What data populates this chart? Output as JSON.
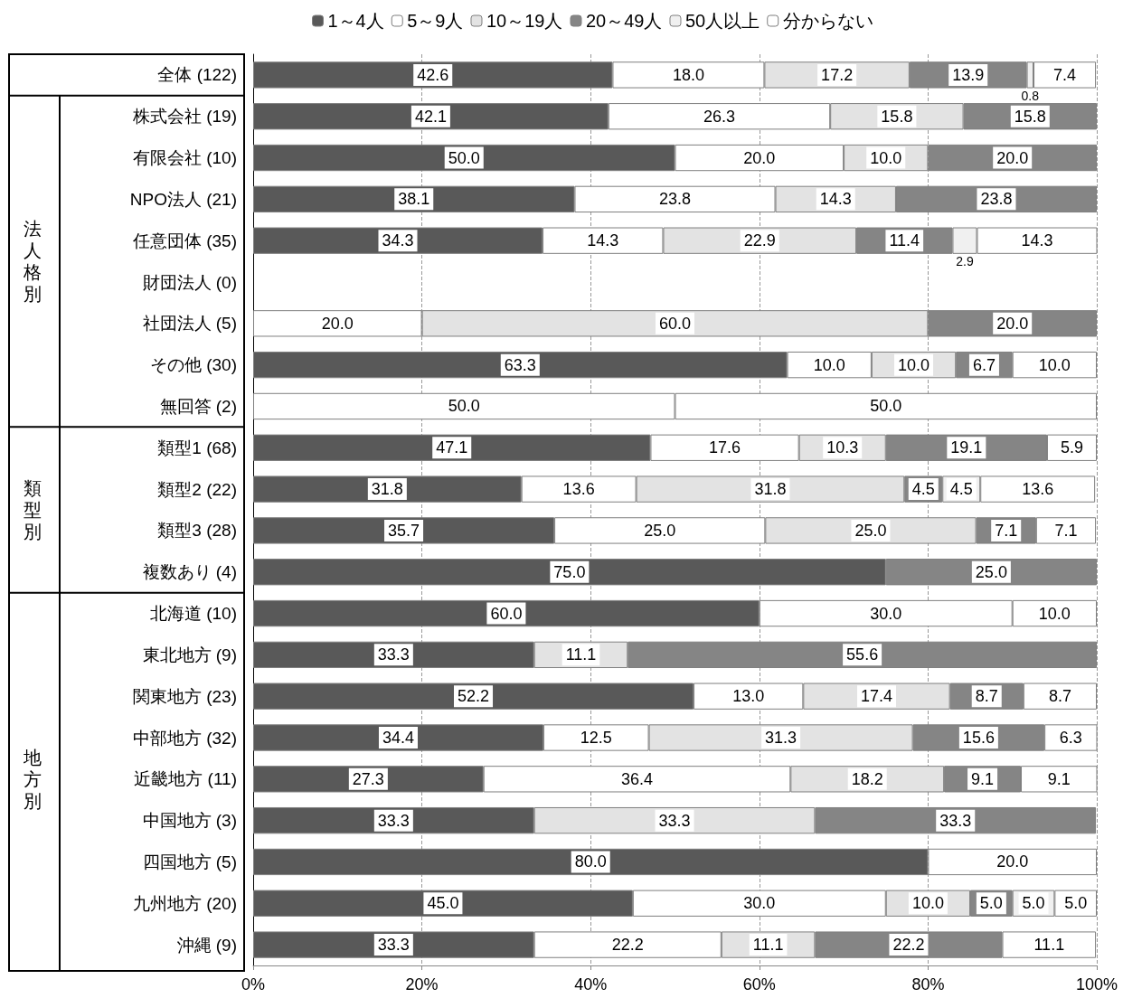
{
  "chart_data": {
    "type": "bar",
    "orientation": "horizontal",
    "stacked": true,
    "categories": [
      "全体 (122)",
      "株式会社 (19)",
      "有限会社 (10)",
      "NPO法人 (21)",
      "任意団体 (35)",
      "財団法人 (0)",
      "社団法人 (5)",
      "その他 (30)",
      "無回答 (2)",
      "類型1 (68)",
      "類型2 (22)",
      "類型3 (28)",
      "複数あり (4)",
      "北海道 (10)",
      "東北地方 (9)",
      "関東地方 (23)",
      "中部地方 (32)",
      "近畿地方 (11)",
      "中国地方 (3)",
      "四国地方 (5)",
      "九州地方 (20)",
      "沖縄 (9)"
    ],
    "series": [
      {
        "name": "1～4人",
        "color": "#595959",
        "values": [
          42.6,
          42.1,
          50.0,
          38.1,
          34.3,
          null,
          null,
          63.3,
          null,
          47.1,
          31.8,
          35.7,
          75.0,
          60.0,
          33.3,
          52.2,
          34.4,
          27.3,
          33.3,
          80.0,
          45.0,
          33.3
        ],
        "value_labels": [
          "42.6",
          "42.1",
          "50.0",
          "38.1",
          "34.3",
          null,
          null,
          "63.3",
          null,
          "47.1",
          "31.8",
          "35.7",
          "75.0",
          "60.0",
          "33.3",
          "52.2",
          "34.4",
          "27.3",
          "33.3",
          "80.0",
          "45.0",
          "33.3"
        ]
      },
      {
        "name": "5～9人",
        "color": "#ffffff",
        "values": [
          18.0,
          26.3,
          20.0,
          23.8,
          14.3,
          null,
          20.0,
          10.0,
          50.0,
          17.6,
          13.6,
          25.0,
          null,
          30.0,
          null,
          13.0,
          12.5,
          36.4,
          null,
          20.0,
          30.0,
          22.2
        ],
        "value_labels": [
          "18.0",
          "26.3",
          "20.0",
          "23.8",
          "14.3",
          null,
          "20.0",
          "10.0",
          "50.0",
          "17.6",
          "13.6",
          "25.0",
          null,
          "30.0",
          null,
          "13.0",
          "12.5",
          "36.4",
          null,
          "20.0",
          "30.0",
          "22.2"
        ]
      },
      {
        "name": "10～19人",
        "color": "#e3e3e3",
        "values": [
          17.2,
          15.8,
          10.0,
          14.3,
          22.9,
          null,
          60.0,
          10.0,
          null,
          10.3,
          31.8,
          25.0,
          null,
          null,
          11.1,
          17.4,
          31.3,
          18.2,
          33.3,
          null,
          10.0,
          11.1
        ],
        "value_labels": [
          "17.2",
          "15.8",
          "10.0",
          "14.3",
          "22.9",
          null,
          "60.0",
          "10.0",
          null,
          "10.3",
          "31.8",
          "25.0",
          null,
          null,
          "11.1",
          "17.4",
          "31.3",
          "18.2",
          "33.3",
          null,
          "10.0",
          "11.1"
        ]
      },
      {
        "name": "20～49人",
        "color": "#858585",
        "values": [
          13.9,
          15.8,
          20.0,
          23.8,
          11.4,
          null,
          20.0,
          6.7,
          null,
          19.1,
          4.5,
          7.1,
          25.0,
          null,
          55.6,
          8.7,
          15.6,
          9.1,
          33.3,
          null,
          5.0,
          22.2
        ],
        "value_labels": [
          "13.9",
          "15.8",
          "20.0",
          "23.8",
          "11.4",
          null,
          "20.0",
          "6.7",
          null,
          "19.1",
          "4.5",
          "7.1",
          "25.0",
          null,
          "55.6",
          "8.7",
          "15.6",
          "9.1",
          "33.3",
          null,
          "5.0",
          "22.2"
        ]
      },
      {
        "name": "50人以上",
        "color": "#f0f0f0",
        "values": [
          0.8,
          null,
          null,
          null,
          2.9,
          null,
          null,
          null,
          null,
          null,
          4.5,
          null,
          null,
          null,
          null,
          null,
          null,
          null,
          null,
          null,
          5.0,
          null
        ],
        "value_labels": [
          "0.8",
          null,
          null,
          null,
          "2.9",
          null,
          null,
          null,
          null,
          null,
          "4.5",
          null,
          null,
          null,
          null,
          null,
          null,
          null,
          null,
          null,
          "5.0",
          null
        ]
      },
      {
        "name": "分からない",
        "color": "#ffffff",
        "values": [
          7.4,
          null,
          null,
          null,
          14.3,
          null,
          null,
          10.0,
          50.0,
          5.9,
          13.6,
          7.1,
          null,
          10.0,
          null,
          8.7,
          6.3,
          9.1,
          null,
          null,
          5.0,
          11.1
        ],
        "value_labels": [
          "7.4",
          null,
          null,
          null,
          "14.3",
          null,
          null,
          "10.0",
          "50.0",
          "5.9",
          "13.6",
          "7.1",
          null,
          "10.0",
          null,
          "8.7",
          "6.3",
          "9.1",
          null,
          null,
          "5.0",
          "11.1"
        ]
      }
    ],
    "xlim": [
      0,
      100
    ],
    "xticks": [
      {
        "value": 0,
        "label": "0%"
      },
      {
        "value": 20,
        "label": "20%"
      },
      {
        "value": 40,
        "label": "40%"
      },
      {
        "value": 60,
        "label": "60%"
      },
      {
        "value": 80,
        "label": "80%"
      },
      {
        "value": 100,
        "label": "100%"
      }
    ],
    "grid": "x",
    "legend": "top",
    "annotations": [
      "法人格別",
      "類型別",
      "地方別"
    ]
  }
}
